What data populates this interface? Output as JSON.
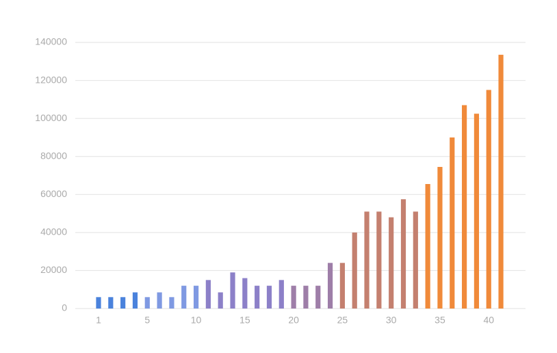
{
  "chart_data": {
    "type": "bar",
    "categories": [
      "1",
      null,
      null,
      null,
      "5",
      null,
      null,
      null,
      "10",
      null,
      null,
      null,
      "15",
      null,
      null,
      null,
      "20",
      null,
      null,
      null,
      "25",
      null,
      null,
      null,
      "30",
      null,
      null,
      null,
      "35",
      null,
      null,
      null,
      "40",
      null
    ],
    "values": [
      6000,
      6000,
      6000,
      8500,
      6000,
      8500,
      6000,
      12000,
      12000,
      15000,
      8500,
      19000,
      16000,
      12000,
      12000,
      15000,
      12000,
      12000,
      12000,
      24000,
      24000,
      40000,
      51000,
      51000,
      48000,
      57500,
      51000,
      65500,
      74500,
      90000,
      107000,
      102500,
      115000,
      133500
    ],
    "colors": [
      "#4a82dc",
      "#4a82dc",
      "#4a82dc",
      "#4a82dc",
      "#7f99e2",
      "#7f99e2",
      "#7f99e2",
      "#7f99e2",
      "#7f99e2",
      "#8c80c8",
      "#8c80c8",
      "#8c80c8",
      "#8c80c8",
      "#8c80c8",
      "#8c80c8",
      "#8c80c8",
      "#9e7ea8",
      "#9e7ea8",
      "#9e7ea8",
      "#9e7ea8",
      "#c4806f",
      "#c4806f",
      "#c4806f",
      "#c4806f",
      "#c4806f",
      "#c4806f",
      "#c4806f",
      "#f08a3a",
      "#f08a3a",
      "#f08a3a",
      "#f08a3a",
      "#f08a3a",
      "#f08a3a",
      "#f08a3a"
    ],
    "ylim": [
      0,
      140000
    ],
    "yticks": [
      0,
      20000,
      40000,
      60000,
      80000,
      100000,
      120000,
      140000
    ],
    "grid": true
  }
}
